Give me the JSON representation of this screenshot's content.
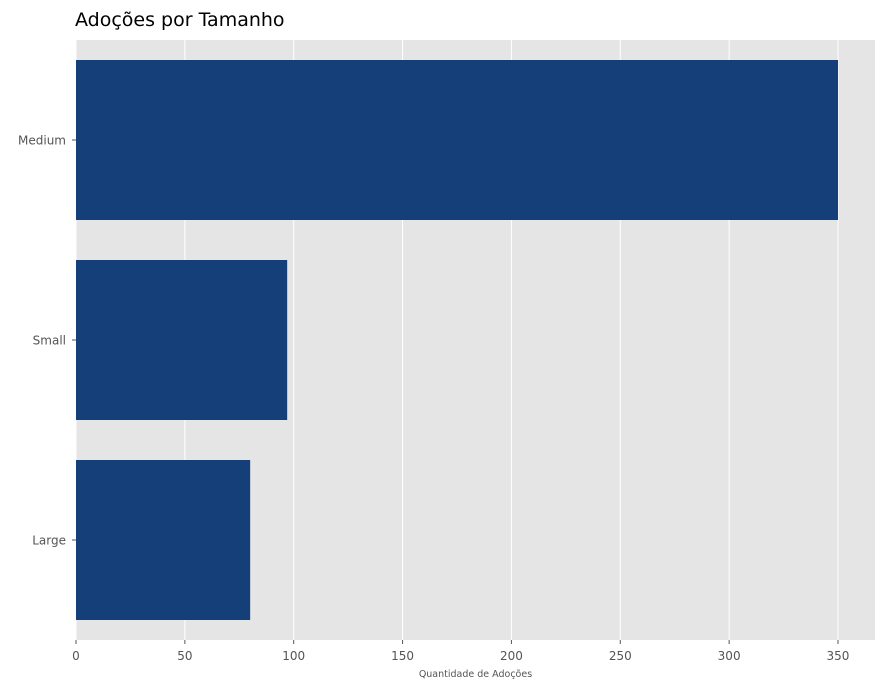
{
  "chart_data": {
    "type": "bar",
    "orientation": "horizontal",
    "title": "Adoções por Tamanho",
    "xlabel": "Quantidade de Adoções",
    "ylabel": "",
    "categories": [
      "Medium",
      "Small",
      "Large"
    ],
    "values": [
      350,
      97,
      80
    ],
    "xlim": [
      0,
      367
    ],
    "xticks": [
      0,
      50,
      100,
      150,
      200,
      250,
      300,
      350
    ],
    "grid": true,
    "bar_color": "#143f78",
    "background_color": "#e5e5e5",
    "grid_color": "#ffffff"
  }
}
